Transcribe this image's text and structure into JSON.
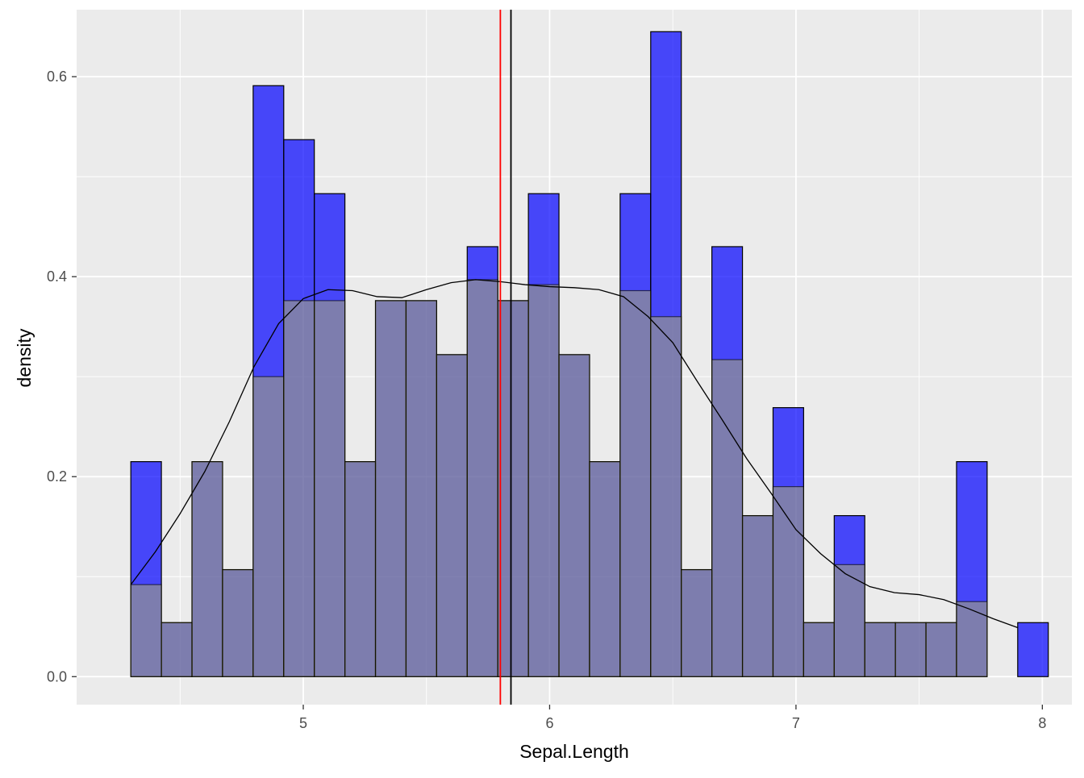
{
  "chart_data": {
    "type": "bar",
    "xlabel": "Sepal.Length",
    "ylabel": "density",
    "xlim": [
      4.08,
      8.12
    ],
    "ylim": [
      -0.028,
      0.667
    ],
    "x_ticks": [
      5,
      6,
      7,
      8
    ],
    "x_tick_labels": [
      "5",
      "6",
      "7",
      "8"
    ],
    "y_ticks": [
      0.0,
      0.2,
      0.4,
      0.6
    ],
    "y_tick_labels": [
      "0.0",
      "0.2",
      "0.4",
      "0.6"
    ],
    "grid": true,
    "panel_background": "#EBEBEB",
    "series": [
      {
        "kind": "histogram",
        "fill": "#0000FF",
        "fill_opacity": 0.7,
        "outline": "#000000",
        "bin_edges": [
          4.3,
          4.4241,
          4.5483,
          4.6724,
          4.7966,
          4.9207,
          5.0448,
          5.169,
          5.2931,
          5.4172,
          5.5414,
          5.6655,
          5.7897,
          5.9138,
          6.0379,
          6.1621,
          6.2862,
          6.4103,
          6.5345,
          6.6586,
          6.7828,
          6.9069,
          7.031,
          7.1552,
          7.2793,
          7.4034,
          7.5276,
          7.6517,
          7.7759,
          7.9,
          8.0241
        ],
        "values": [
          0.215,
          0.054,
          0.215,
          0.107,
          0.591,
          0.537,
          0.483,
          0.215,
          0.376,
          0.376,
          0.322,
          0.43,
          0.376,
          0.483,
          0.322,
          0.215,
          0.483,
          0.645,
          0.107,
          0.43,
          0.161,
          0.269,
          0.054,
          0.161,
          0.054,
          0.054,
          0.054,
          0.215,
          0.0,
          0.054
        ]
      },
      {
        "kind": "histogram",
        "fill": "#FFFF00",
        "fill_opacity": 0.3,
        "outline": "#000000",
        "bin_edges": [
          4.3,
          4.4241,
          4.5483,
          4.6724,
          4.7966,
          4.9207,
          5.0448,
          5.169,
          5.2931,
          5.4172,
          5.5414,
          5.6655,
          5.7897,
          5.9138,
          6.0379,
          6.1621,
          6.2862,
          6.4103,
          6.5345,
          6.6586,
          6.7828,
          6.9069,
          7.031,
          7.1552,
          7.2793,
          7.4034,
          7.5276,
          7.6517,
          7.7759
        ],
        "values": [
          0.092,
          0.054,
          0.215,
          0.107,
          0.3,
          0.376,
          0.376,
          0.215,
          0.376,
          0.376,
          0.322,
          0.397,
          0.376,
          0.392,
          0.322,
          0.215,
          0.386,
          0.36,
          0.107,
          0.317,
          0.161,
          0.19,
          0.054,
          0.112,
          0.054,
          0.054,
          0.054,
          0.075
        ]
      },
      {
        "kind": "density",
        "line": "#000000",
        "x": [
          4.3,
          4.4,
          4.5,
          4.6,
          4.7,
          4.8,
          4.9,
          5.0,
          5.1,
          5.2,
          5.3,
          5.4,
          5.5,
          5.6,
          5.7,
          5.8,
          5.9,
          6.0,
          6.1,
          6.2,
          6.3,
          6.4,
          6.5,
          6.6,
          6.7,
          6.8,
          6.9,
          7.0,
          7.1,
          7.2,
          7.3,
          7.4,
          7.5,
          7.6,
          7.7,
          7.8,
          7.9
        ],
        "y": [
          0.092,
          0.125,
          0.163,
          0.205,
          0.255,
          0.31,
          0.353,
          0.378,
          0.387,
          0.386,
          0.38,
          0.379,
          0.387,
          0.394,
          0.397,
          0.395,
          0.392,
          0.39,
          0.389,
          0.387,
          0.38,
          0.36,
          0.334,
          0.295,
          0.257,
          0.218,
          0.183,
          0.147,
          0.123,
          0.103,
          0.09,
          0.084,
          0.082,
          0.077,
          0.068,
          0.058,
          0.049
        ]
      }
    ],
    "reference_lines": [
      {
        "x": 5.8,
        "color": "#FF0000"
      },
      {
        "x": 5.843,
        "color": "#000000"
      }
    ]
  }
}
